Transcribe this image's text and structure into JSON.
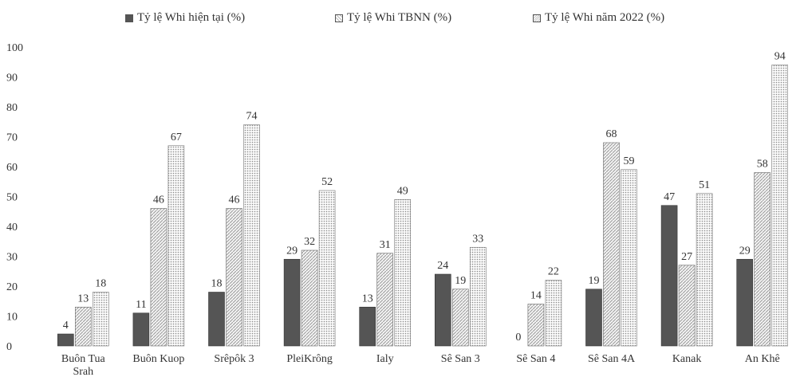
{
  "chart_data": {
    "type": "bar",
    "title": "",
    "xlabel": "",
    "ylabel": "",
    "ylim": [
      0,
      100
    ],
    "yticks": [
      0,
      10,
      20,
      30,
      40,
      50,
      60,
      70,
      80,
      90,
      100
    ],
    "grid": false,
    "legend_position": "top",
    "categories": [
      "Buôn Tua Srah",
      "Buôn Kuop",
      "Srêpôk 3",
      "PleiKrông",
      "Ialy",
      "Sê San 3",
      "Sê San 4",
      "Sê San 4A",
      "Kanak",
      "An Khê"
    ],
    "series": [
      {
        "name": "Tỷ lệ Whi hiện tại (%)",
        "values": [
          4,
          11,
          18,
          29,
          13,
          24,
          0,
          19,
          47,
          29
        ],
        "color": "#555555"
      },
      {
        "name": "Tỷ lệ Whi TBNN (%)",
        "values": [
          13,
          46,
          46,
          32,
          31,
          19,
          14,
          68,
          27,
          58
        ],
        "color": "#bbbbbb"
      },
      {
        "name": "Tỷ lệ Whi năm 2022 (%)",
        "values": [
          18,
          67,
          74,
          52,
          49,
          33,
          22,
          59,
          51,
          94
        ],
        "color": "#dddddd"
      }
    ],
    "data_labels": [
      [
        "4",
        "11",
        "18",
        "29",
        "13",
        "24",
        "0",
        "19",
        "47",
        "29"
      ],
      [
        "13",
        "46",
        "46",
        "32",
        "31",
        "19",
        "14",
        "68",
        "27",
        "58"
      ],
      [
        "18",
        "67",
        "74",
        "52",
        "49",
        "33",
        "22",
        "59",
        "51",
        "94"
      ]
    ]
  }
}
